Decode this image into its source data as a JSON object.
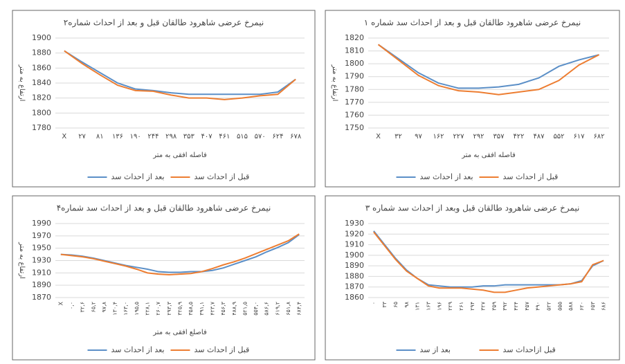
{
  "chart_data": [
    {
      "type": "line",
      "title": "نیمرخ عرضی شاهرود طالقان قبل و بعد از احداث شماره۲",
      "ylabel": "ارتفاع به متر",
      "xlabel": "فاصله افقی به متر",
      "categories": [
        "X",
        "۲۷",
        "۸۱",
        "۱۳۶",
        "۱۹۰",
        "۲۴۴",
        "۲۹۸",
        "۳۵۳",
        "۴۰۷",
        "۴۶۱",
        "۵۱۵",
        "۵۷۰",
        "۶۲۴",
        "۶۷۸"
      ],
      "series": [
        {
          "name": "بعد از احداث سد",
          "color": "#5b8fc7",
          "values": [
            1883,
            1868,
            1854,
            1840,
            1832,
            1830,
            1827,
            1825,
            1825,
            1825,
            1825,
            1825,
            1828,
            1845
          ]
        },
        {
          "name": "قبل از احداث سد",
          "color": "#ed7d31",
          "values": [
            1883,
            1866,
            1851,
            1837,
            1830,
            1829,
            1824,
            1820,
            1820,
            1818,
            1820,
            1823,
            1825,
            1845
          ]
        }
      ],
      "ylim": [
        1780,
        1900
      ],
      "yticks": [
        1780,
        1800,
        1820,
        1840,
        1860,
        1880,
        1900
      ],
      "grid": true
    },
    {
      "type": "line",
      "title": "نیمرخ عرضی شاهرود طالقان قبل و بعد از احداث سد شماره ۱",
      "ylabel": "ارتفاع به متر",
      "xlabel": "فاصله افقی به متر",
      "categories": [
        "X",
        "۳۲",
        "۹۷",
        "۱۶۲",
        "۲۲۷",
        "۲۹۲",
        "۳۵۷",
        "۴۲۲",
        "۴۸۷",
        "۵۵۲",
        "۶۱۷",
        "۶۸۲"
      ],
      "series": [
        {
          "name": "بعد از احداث سد",
          "color": "#5b8fc7",
          "values": [
            1815,
            1804,
            1793,
            1785,
            1781,
            1781,
            1782,
            1784,
            1789,
            1798,
            1803,
            1807
          ]
        },
        {
          "name": "قبل از احداث سد",
          "color": "#ed7d31",
          "values": [
            1815,
            1803,
            1791,
            1783,
            1779,
            1778,
            1776,
            1778,
            1780,
            1787,
            1799,
            1807
          ]
        }
      ],
      "ylim": [
        1750,
        1820
      ],
      "yticks": [
        1750,
        1760,
        1770,
        1780,
        1790,
        1800,
        1810,
        1820
      ],
      "grid": true
    },
    {
      "type": "line",
      "title": "نیمرخ عرضی شاهرود طالقان قبل و بعد از احداث سد شماره۴",
      "ylabel": "ارتفاع به متر",
      "xlabel": "فاصلع افقی به متر",
      "categories": [
        "X",
        "۰,۰",
        "۳۲,۶",
        "۶۵,۲",
        "۹۷,۸",
        "۱۳۰,۴",
        "۱۶۳,۰",
        "۱۹۵,۵",
        "۲۲۸,۱",
        "۲۶۰,۷",
        "۲۹۳,۳",
        "۳۲۵,۹",
        "۳۵۸,۵",
        "۳۹۱,۱",
        "۴۲۳,۷",
        "۴۵۶,۳",
        "۴۸۸,۹",
        "۵۲۱,۵",
        "۵۵۴,۰",
        "۵۸۶,۶",
        "۶۱۹,۲",
        "۶۵۱,۸",
        "۶۸۴,۴"
      ],
      "series": [
        {
          "name": "بعد از احداث سد",
          "color": "#5b8fc7",
          "values": [
            1940,
            1939,
            1937,
            1934,
            1930,
            1926,
            1922,
            1919,
            1916,
            1912,
            1911,
            1911,
            1912,
            1912,
            1914,
            1918,
            1924,
            1930,
            1936,
            1944,
            1951,
            1959,
            1972
          ]
        },
        {
          "name": "قبل از احداث سد",
          "color": "#ed7d31",
          "values": [
            1940,
            1938,
            1936,
            1933,
            1929,
            1925,
            1921,
            1916,
            1910,
            1908,
            1907,
            1908,
            1909,
            1912,
            1917,
            1923,
            1928,
            1934,
            1941,
            1948,
            1955,
            1962,
            1973
          ]
        }
      ],
      "ylim": [
        1870,
        1990
      ],
      "yticks": [
        1870,
        1890,
        1910,
        1930,
        1950,
        1970,
        1990
      ],
      "grid": true
    },
    {
      "type": "line",
      "title": "نیمرخ عرضی شاهرود طالقان قبل وبعد از احداث سد شماره ۳",
      "categories": [
        "۰",
        "۳۳",
        "۶۵",
        "۹۸",
        "۱۳۱",
        "۱۶۳",
        "۱۹۶",
        "۲۲۹",
        "۲۶۱",
        "۲۹۴",
        "۳۲۷",
        "۳۵۹",
        "۳۹۲",
        "۴۲۴",
        "۴۵۷",
        "۴۹۰",
        "۵۲۲",
        "۵۵۵",
        "۵۸۸",
        "۶۲۰",
        "۶۵۳",
        "۶۸۶"
      ],
      "series": [
        {
          "name": "بعد از سد",
          "color": "#5b8fc7",
          "values": [
            1923,
            1910,
            1897,
            1886,
            1878,
            1872,
            1871,
            1870,
            1870,
            1870,
            1871,
            1871,
            1872,
            1872,
            1872,
            1872,
            1872,
            1872,
            1873,
            1876,
            1890,
            1895
          ]
        },
        {
          "name": "قبل ازاحداث سد",
          "color": "#ed7d31",
          "values": [
            1922,
            1909,
            1896,
            1885,
            1878,
            1871,
            1869,
            1869,
            1869,
            1868,
            1867,
            1865,
            1865,
            1867,
            1869,
            1870,
            1871,
            1872,
            1873,
            1875,
            1891,
            1895
          ]
        }
      ],
      "ylim": [
        1860,
        1930
      ],
      "yticks": [
        1860,
        1870,
        1880,
        1890,
        1900,
        1910,
        1920,
        1930
      ],
      "grid": true
    }
  ]
}
